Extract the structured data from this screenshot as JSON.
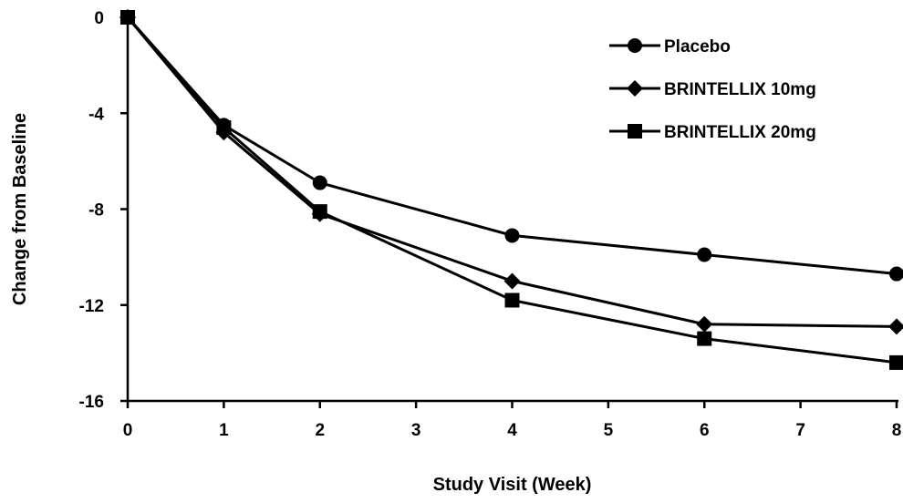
{
  "chart_data": {
    "type": "line",
    "title": "",
    "xlabel": "Study Visit (Week)",
    "ylabel": "Change from Baseline",
    "xlim": [
      0,
      8
    ],
    "ylim": [
      -16,
      0
    ],
    "x_ticks": [
      0,
      1,
      2,
      3,
      4,
      5,
      6,
      7,
      8
    ],
    "y_ticks": [
      0,
      -4,
      -8,
      -12,
      -16
    ],
    "grid": false,
    "legend_position": "top-right",
    "series": [
      {
        "name": "Placebo",
        "marker": "circle",
        "color": "#000000",
        "x": [
          0,
          1,
          2,
          4,
          6,
          8
        ],
        "y": [
          0,
          -4.5,
          -6.9,
          -9.1,
          -9.9,
          -10.7
        ]
      },
      {
        "name": "BRINTELLIX 10mg",
        "marker": "diamond",
        "color": "#000000",
        "x": [
          0,
          1,
          2,
          4,
          6,
          8
        ],
        "y": [
          0,
          -4.8,
          -8.2,
          -11.0,
          -12.8,
          -12.9
        ]
      },
      {
        "name": "BRINTELLIX 20mg",
        "marker": "square",
        "color": "#000000",
        "x": [
          0,
          1,
          2,
          4,
          6,
          8
        ],
        "y": [
          0,
          -4.6,
          -8.1,
          -11.8,
          -13.4,
          -14.4
        ]
      }
    ]
  }
}
